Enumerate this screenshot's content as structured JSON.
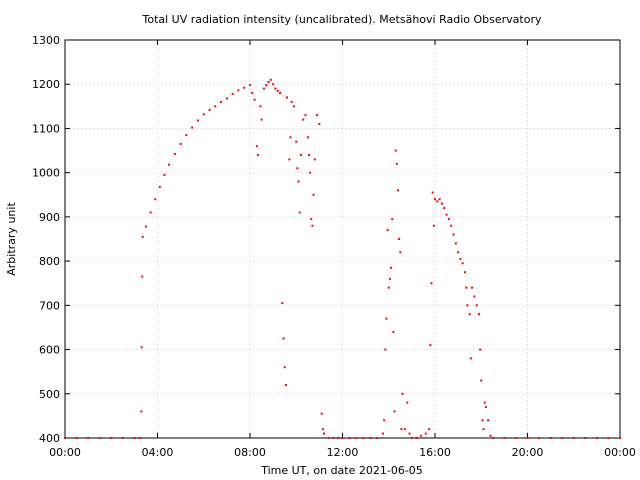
{
  "chart_data": {
    "type": "scatter",
    "title": "Total UV radiation intensity (uncalibrated). Metsähovi Radio Observatory",
    "xlabel": "Time UT, on date 2021-06-05",
    "ylabel": "Arbitrary unit",
    "xlim": [
      0,
      24
    ],
    "ylim": [
      400,
      1300
    ],
    "xticks": [
      {
        "value": 0,
        "label": "00:00"
      },
      {
        "value": 4,
        "label": "04:00"
      },
      {
        "value": 8,
        "label": "08:00"
      },
      {
        "value": 12,
        "label": "12:00"
      },
      {
        "value": 16,
        "label": "16:00"
      },
      {
        "value": 20,
        "label": "20:00"
      },
      {
        "value": 24,
        "label": "00:00"
      }
    ],
    "yticks": [
      {
        "value": 400,
        "label": "400"
      },
      {
        "value": 500,
        "label": "500"
      },
      {
        "value": 600,
        "label": "600"
      },
      {
        "value": 700,
        "label": "700"
      },
      {
        "value": 800,
        "label": "800"
      },
      {
        "value": 900,
        "label": "900"
      },
      {
        "value": 1000,
        "label": "1000"
      },
      {
        "value": 1100,
        "label": "1100"
      },
      {
        "value": 1200,
        "label": "1200"
      },
      {
        "value": 1300,
        "label": "1300"
      }
    ],
    "grid": true,
    "legend": "none",
    "marker_color": "#ff0000",
    "series": [
      {
        "points": [
          [
            0.0,
            400
          ],
          [
            0.5,
            400
          ],
          [
            1.0,
            400
          ],
          [
            1.5,
            400
          ],
          [
            2.0,
            400
          ],
          [
            2.5,
            400
          ],
          [
            3.0,
            400
          ],
          [
            3.25,
            400
          ],
          [
            3.3,
            460
          ],
          [
            3.32,
            605
          ],
          [
            3.34,
            765
          ],
          [
            3.36,
            855
          ],
          [
            3.5,
            878
          ],
          [
            3.7,
            910
          ],
          [
            3.9,
            940
          ],
          [
            4.1,
            968
          ],
          [
            4.3,
            995
          ],
          [
            4.5,
            1018
          ],
          [
            4.75,
            1042
          ],
          [
            5.0,
            1065
          ],
          [
            5.25,
            1085
          ],
          [
            5.5,
            1102
          ],
          [
            5.75,
            1118
          ],
          [
            6.0,
            1132
          ],
          [
            6.25,
            1142
          ],
          [
            6.5,
            1150
          ],
          [
            6.75,
            1160
          ],
          [
            7.0,
            1168
          ],
          [
            7.25,
            1178
          ],
          [
            7.5,
            1186
          ],
          [
            7.75,
            1192
          ],
          [
            8.0,
            1198
          ],
          [
            8.1,
            1180
          ],
          [
            8.2,
            1165
          ],
          [
            8.3,
            1060
          ],
          [
            8.35,
            1040
          ],
          [
            8.45,
            1150
          ],
          [
            8.5,
            1120
          ],
          [
            8.6,
            1190
          ],
          [
            8.7,
            1198
          ],
          [
            8.8,
            1205
          ],
          [
            8.9,
            1210
          ],
          [
            9.0,
            1200
          ],
          [
            9.1,
            1190
          ],
          [
            9.2,
            1185
          ],
          [
            9.3,
            1180
          ],
          [
            9.4,
            705
          ],
          [
            9.45,
            625
          ],
          [
            9.5,
            560
          ],
          [
            9.55,
            520
          ],
          [
            9.6,
            1170
          ],
          [
            9.7,
            1030
          ],
          [
            9.75,
            1080
          ],
          [
            9.8,
            1160
          ],
          [
            9.9,
            1150
          ],
          [
            10.0,
            1070
          ],
          [
            10.05,
            1010
          ],
          [
            10.1,
            980
          ],
          [
            10.15,
            910
          ],
          [
            10.2,
            1040
          ],
          [
            10.3,
            1120
          ],
          [
            10.4,
            1130
          ],
          [
            10.5,
            1080
          ],
          [
            10.55,
            1040
          ],
          [
            10.6,
            1000
          ],
          [
            10.65,
            895
          ],
          [
            10.7,
            880
          ],
          [
            10.75,
            950
          ],
          [
            10.8,
            1030
          ],
          [
            10.9,
            1130
          ],
          [
            11.0,
            1110
          ],
          [
            11.1,
            455
          ],
          [
            11.15,
            420
          ],
          [
            11.2,
            410
          ],
          [
            11.4,
            400
          ],
          [
            11.6,
            400
          ],
          [
            11.8,
            400
          ],
          [
            12.0,
            400
          ],
          [
            12.3,
            400
          ],
          [
            12.6,
            400
          ],
          [
            12.9,
            400
          ],
          [
            13.2,
            400
          ],
          [
            13.5,
            400
          ],
          [
            13.75,
            410
          ],
          [
            13.8,
            440
          ],
          [
            13.85,
            600
          ],
          [
            13.9,
            670
          ],
          [
            13.95,
            870
          ],
          [
            14.0,
            740
          ],
          [
            14.05,
            760
          ],
          [
            14.1,
            785
          ],
          [
            14.15,
            895
          ],
          [
            14.2,
            640
          ],
          [
            14.25,
            460
          ],
          [
            14.3,
            1050
          ],
          [
            14.35,
            1020
          ],
          [
            14.4,
            960
          ],
          [
            14.45,
            850
          ],
          [
            14.5,
            820
          ],
          [
            14.55,
            420
          ],
          [
            14.6,
            500
          ],
          [
            14.7,
            420
          ],
          [
            14.8,
            480
          ],
          [
            14.9,
            410
          ],
          [
            15.0,
            400
          ],
          [
            15.2,
            400
          ],
          [
            15.4,
            405
          ],
          [
            15.6,
            410
          ],
          [
            15.75,
            420
          ],
          [
            15.8,
            610
          ],
          [
            15.85,
            750
          ],
          [
            15.9,
            955
          ],
          [
            15.95,
            880
          ],
          [
            16.0,
            940
          ],
          [
            16.1,
            935
          ],
          [
            16.2,
            940
          ],
          [
            16.3,
            930
          ],
          [
            16.4,
            920
          ],
          [
            16.5,
            905
          ],
          [
            16.6,
            895
          ],
          [
            16.7,
            880
          ],
          [
            16.8,
            860
          ],
          [
            16.9,
            840
          ],
          [
            17.0,
            820
          ],
          [
            17.1,
            805
          ],
          [
            17.2,
            795
          ],
          [
            17.3,
            775
          ],
          [
            17.35,
            740
          ],
          [
            17.4,
            700
          ],
          [
            17.5,
            680
          ],
          [
            17.55,
            580
          ],
          [
            17.6,
            740
          ],
          [
            17.7,
            720
          ],
          [
            17.8,
            700
          ],
          [
            17.9,
            680
          ],
          [
            17.95,
            600
          ],
          [
            18.0,
            530
          ],
          [
            18.05,
            440
          ],
          [
            18.1,
            420
          ],
          [
            18.15,
            480
          ],
          [
            18.2,
            470
          ],
          [
            18.3,
            440
          ],
          [
            18.4,
            405
          ],
          [
            18.5,
            400
          ],
          [
            19.0,
            400
          ],
          [
            19.5,
            400
          ],
          [
            20.0,
            400
          ],
          [
            20.5,
            400
          ],
          [
            21.0,
            400
          ],
          [
            21.5,
            400
          ],
          [
            22.0,
            400
          ],
          [
            22.5,
            400
          ],
          [
            23.0,
            400
          ],
          [
            23.5,
            400
          ],
          [
            24.0,
            400
          ]
        ]
      }
    ]
  }
}
